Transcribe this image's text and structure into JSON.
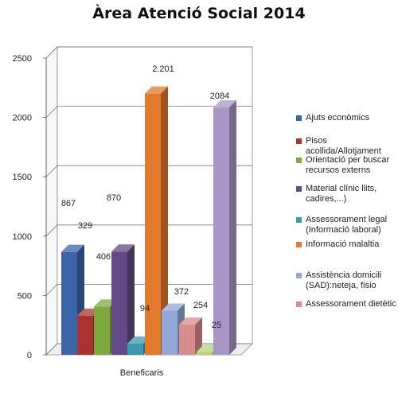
{
  "chart_data": {
    "type": "bar",
    "title": "Àrea Atenció Social 2014",
    "categories": [
      "Beneficaris"
    ],
    "ylim": [
      0,
      2500
    ],
    "yticks": [
      "0",
      "500",
      "1000",
      "1500",
      "2000",
      "2500"
    ],
    "grid": true,
    "legend_position": "right",
    "series": [
      {
        "name": "Ajuts econòmics",
        "value": 867,
        "value_label": "867",
        "color": "#3c64a8"
      },
      {
        "name": "Pisos acollida/Allotjament",
        "value": 329,
        "value_label": "329",
        "color": "#a83432"
      },
      {
        "name": "Orientació per buscar recursos externs",
        "value": 406,
        "value_label": "406",
        "color": "#7ea83c"
      },
      {
        "name": "Material clínic llits, cadires,...)",
        "value": 870,
        "value_label": "870",
        "color": "#634a86"
      },
      {
        "name": "Assessorament legal (Informació laboral)",
        "value": 94,
        "value_label": "94",
        "color": "#3a99ae"
      },
      {
        "name": "Informació malaltia",
        "value": 2201,
        "value_label": "2.201",
        "color": "#e27a2e"
      },
      {
        "name": "Assistència domicili (SAD):neteja, fisio",
        "value": 372,
        "value_label": "372",
        "color": "#92a8d8"
      },
      {
        "name": "Assessorament dietètic",
        "value": 254,
        "value_label": "254",
        "color": "#d98c8c"
      },
      {
        "name": "",
        "value": 25,
        "value_label": "25",
        "color": "#b6d47a"
      },
      {
        "name": "",
        "value": 2084,
        "value_label": "2084",
        "color": "#a896c6"
      }
    ]
  }
}
